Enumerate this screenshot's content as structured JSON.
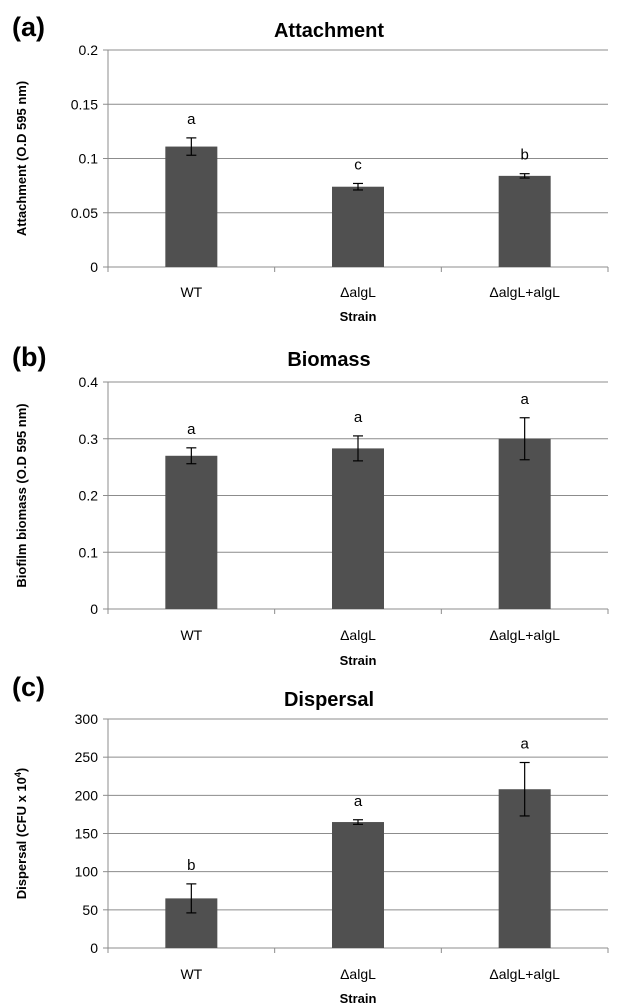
{
  "chart_data": [
    {
      "type": "bar",
      "panel": "(a)",
      "title": "Attachment",
      "xlabel": "Strain",
      "ylabel": "Attachment (O.D 595 nm)",
      "ylim": [
        0,
        0.2
      ],
      "yticks": [
        "0",
        "0.05",
        "0.1",
        "0.15",
        "0.2"
      ],
      "grid": true,
      "categories": [
        "WT",
        "ΔalgL",
        "ΔalgL+algL"
      ],
      "values": [
        0.111,
        0.074,
        0.084
      ],
      "errors": [
        0.008,
        0.003,
        0.002
      ],
      "annotations": [
        "a",
        "c",
        "b"
      ],
      "bar_color": "#505050"
    },
    {
      "type": "bar",
      "panel": "(b)",
      "title": "Biomass",
      "xlabel": "Strain",
      "ylabel": "Biofilm biomass (O.D 595 nm)",
      "ylim": [
        0,
        0.4
      ],
      "yticks": [
        "0",
        "0.1",
        "0.2",
        "0.3",
        "0.4"
      ],
      "grid": true,
      "categories": [
        "WT",
        "ΔalgL",
        "ΔalgL+algL"
      ],
      "values": [
        0.27,
        0.283,
        0.3
      ],
      "errors": [
        0.014,
        0.022,
        0.037
      ],
      "annotations": [
        "a",
        "a",
        "a"
      ],
      "bar_color": "#505050"
    },
    {
      "type": "bar",
      "panel": "(c)",
      "title": "Dispersal",
      "xlabel": "Strain",
      "ylabel": "Dispersal (CFU x 10",
      "ylabel_sup": "4",
      "ylabel_end": ")",
      "ylim": [
        0,
        300
      ],
      "yticks": [
        "0",
        "50",
        "100",
        "150",
        "200",
        "250",
        "300"
      ],
      "grid": true,
      "categories": [
        "WT",
        "ΔalgL",
        "ΔalgL+algL"
      ],
      "values": [
        65,
        165,
        208
      ],
      "errors": [
        19,
        3,
        35
      ],
      "annotations": [
        "b",
        "a",
        "a"
      ],
      "bar_color": "#505050"
    }
  ]
}
